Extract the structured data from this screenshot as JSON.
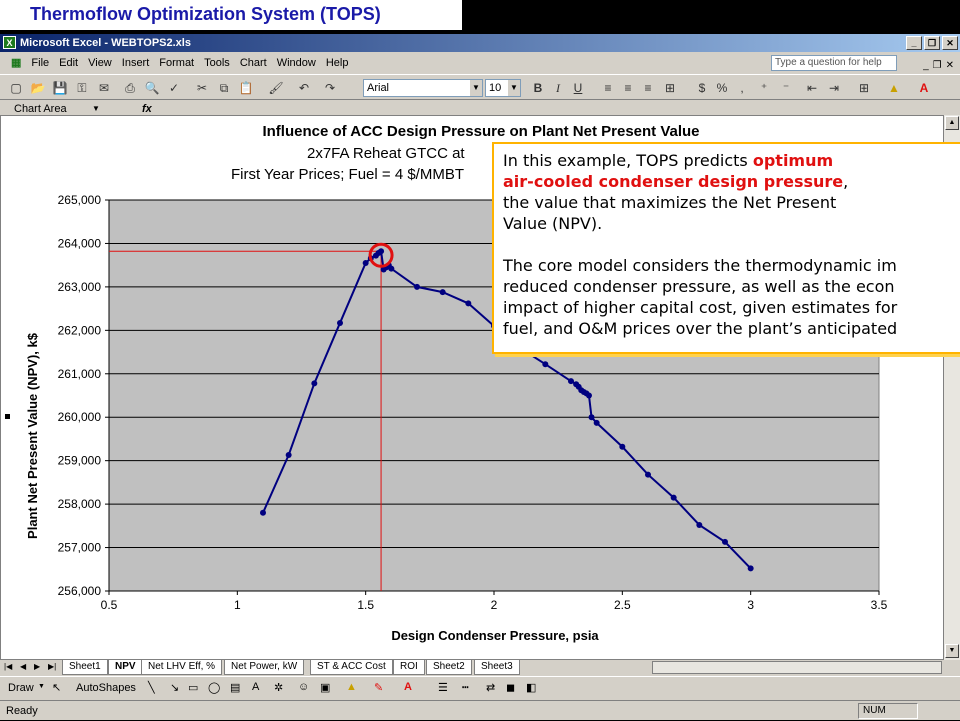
{
  "slide": {
    "title": "Thermoflow Optimization System (TOPS)"
  },
  "window": {
    "title": "Microsoft Excel - WEBTOPS2.xls",
    "app_icon": "excel-icon"
  },
  "menu": {
    "items": [
      "File",
      "Edit",
      "View",
      "Insert",
      "Format",
      "Tools",
      "Chart",
      "Window",
      "Help"
    ],
    "help_placeholder": "Type a question for help"
  },
  "toolbar": {
    "font_name": "Arial",
    "font_size": "10",
    "bold": "B",
    "italic": "I",
    "underline": "U"
  },
  "formula_bar": {
    "name_box": "Chart Area",
    "fx": "fx"
  },
  "sheet_tabs": [
    "Sheet1",
    "NPV",
    "Net LHV Eff, %",
    "Net Power, kW",
    "ST & ACC Cost",
    "ROI",
    "Sheet2",
    "Sheet3"
  ],
  "active_tab": "NPV",
  "draw_toolbar": {
    "draw_label": "Draw",
    "autoshapes_label": "AutoShapes"
  },
  "status": {
    "left": "Ready",
    "num": "NUM"
  },
  "callout": {
    "line1_pre": "In this example, TOPS predicts ",
    "line1_red": "optimum",
    "line2_red": "air-cooled condenser design pressure",
    "line2_post": ",",
    "line3": "the value that maximizes the Net Present",
    "line4": "Value (NPV).",
    "line5": "The core model considers the thermodynamic im",
    "line6": "reduced condenser pressure, as well as the econ",
    "line7": "impact of higher capital cost, given estimates for",
    "line8": "fuel, and O&M prices over the plant’s anticipated"
  },
  "chart_data": {
    "type": "line",
    "title": "Influence of ACC Design Pressure on Plant Net Present Value",
    "subtitle1": "2x7FA Reheat GTCC at",
    "subtitle2": "First Year Prices; Fuel = 4 $/MMBT",
    "xlabel": "Design Condenser Pressure, psia",
    "ylabel": "Plant Net Present Value (NPV), k$",
    "xlim": [
      0.5,
      3.5
    ],
    "ylim": [
      256000,
      265000
    ],
    "x_ticks": [
      "0.5",
      "1",
      "1.5",
      "2",
      "2.5",
      "3",
      "3.5"
    ],
    "y_ticks": [
      "256,000",
      "257,000",
      "258,000",
      "259,000",
      "260,000",
      "261,000",
      "262,000",
      "263,000",
      "264,000",
      "265,000"
    ],
    "grid": "horizontal",
    "plot_bg": "#c0c0c0",
    "series_color": "#000080",
    "optimum": {
      "x": 1.56,
      "y": 263820
    },
    "marker_color": "#e01010",
    "series": [
      {
        "x": [
          1.1,
          1.2,
          1.3,
          1.4,
          1.5,
          1.52,
          1.54,
          1.55,
          1.56,
          1.57,
          1.58,
          1.59,
          1.6,
          1.7,
          1.8,
          1.9,
          2.0,
          2.1,
          2.2,
          2.3,
          2.32,
          2.33,
          2.34,
          2.35,
          2.36,
          2.37,
          2.38,
          2.4,
          2.5,
          2.6,
          2.7,
          2.8,
          2.9,
          3.0
        ],
        "y": [
          257800,
          259130,
          260780,
          262170,
          263550,
          263660,
          263720,
          263780,
          263820,
          263400,
          263450,
          263500,
          263420,
          263000,
          262880,
          262620,
          262100,
          261600,
          261220,
          260830,
          260760,
          260700,
          260620,
          260580,
          260550,
          260500,
          260000,
          259870,
          259320,
          258680,
          258150,
          257520,
          257130,
          256520
        ]
      }
    ]
  },
  "colors": {
    "title_text": "#1a1aa8",
    "callout_border": "#ffb300",
    "accent_red": "#e01010"
  }
}
